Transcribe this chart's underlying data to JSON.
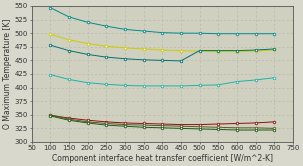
{
  "x": [
    100,
    150,
    200,
    250,
    300,
    350,
    400,
    450,
    500,
    550,
    600,
    650,
    700
  ],
  "series": [
    {
      "name": "line1_teal_top",
      "color": "#008b8b",
      "y": [
        547,
        530,
        520,
        513,
        507,
        504,
        501,
        500,
        500,
        499,
        499,
        499,
        499
      ]
    },
    {
      "name": "line2_yellow",
      "color": "#cccc00",
      "y": [
        498,
        488,
        481,
        476,
        473,
        471,
        469,
        468,
        467,
        466,
        466,
        467,
        469
      ]
    },
    {
      "name": "line3_dark_teal",
      "color": "#007070",
      "y": [
        478,
        468,
        461,
        456,
        453,
        451,
        450,
        449,
        468,
        468,
        468,
        469,
        471
      ]
    },
    {
      "name": "line4_teal_mid",
      "color": "#20b2aa",
      "y": [
        424,
        415,
        409,
        406,
        404,
        403,
        403,
        403,
        404,
        405,
        411,
        414,
        418
      ]
    },
    {
      "name": "line5_dark_red",
      "color": "#8b1010",
      "y": [
        349,
        344,
        340,
        337,
        335,
        334,
        333,
        332,
        332,
        333,
        334,
        335,
        337
      ]
    },
    {
      "name": "line6_olive",
      "color": "#5a5a20",
      "y": [
        350,
        342,
        337,
        334,
        332,
        331,
        330,
        329,
        328,
        327,
        326,
        326,
        325
      ]
    },
    {
      "name": "line7_dark_green",
      "color": "#1a5a1a",
      "y": [
        348,
        340,
        335,
        331,
        329,
        327,
        326,
        325,
        324,
        323,
        322,
        322,
        322
      ]
    }
  ],
  "xlim": [
    50,
    750
  ],
  "ylim": [
    300,
    550
  ],
  "xticks": [
    50,
    100,
    150,
    200,
    250,
    300,
    350,
    400,
    450,
    500,
    550,
    600,
    650,
    700,
    750
  ],
  "yticks": [
    300,
    325,
    350,
    375,
    400,
    425,
    450,
    475,
    500,
    525,
    550
  ],
  "xlabel": "Component interface heat transfer coefficient [W/m^2-K]",
  "ylabel": "O Maximum Temperature [K]",
  "bg_color": "#d8d8cc",
  "plot_bg": "#d0d0c0",
  "grid_color": "#b8b8a8",
  "label_fontsize": 5.5,
  "tick_fontsize": 5.0
}
